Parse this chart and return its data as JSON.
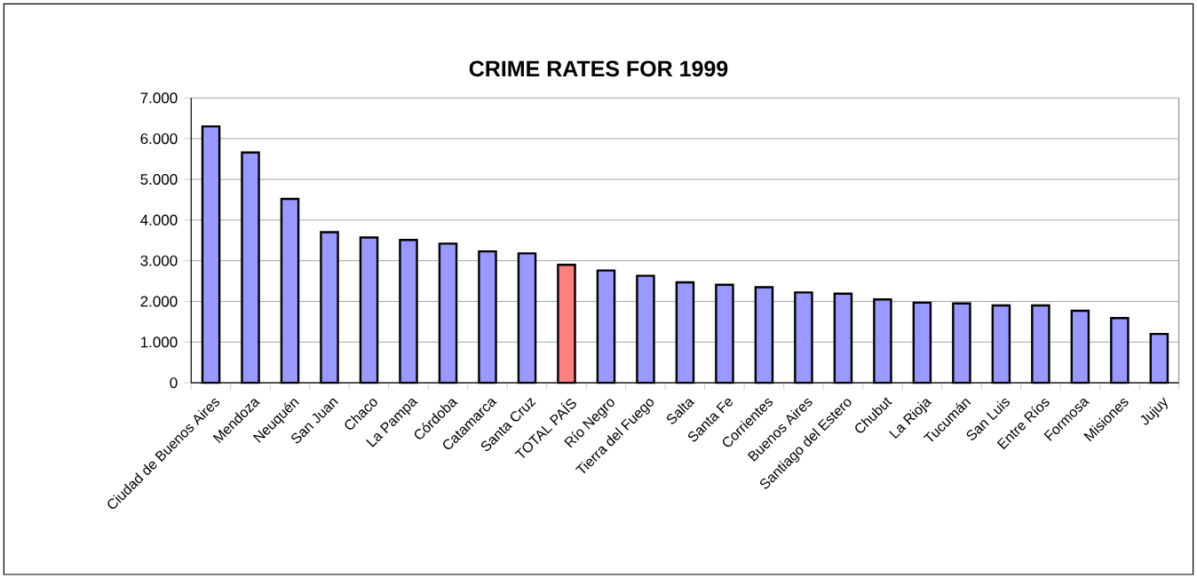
{
  "chart_data": {
    "type": "bar",
    "title": "CRIME RATES FOR 1999",
    "categories": [
      "Ciudad de Buenos Aires",
      "Mendoza",
      "Neuquén",
      "San Juan",
      "Chaco",
      "La Pampa",
      "Córdoba",
      "Catamarca",
      "Santa Cruz",
      "TOTAL PAÍS",
      "Río Negro",
      "Tierra del Fuego",
      "Salta",
      "Santa Fe",
      "Corrientes",
      "Buenos Aires",
      "Santiago del Estero",
      "Chubut",
      "La Rioja",
      "Tucumán",
      "San Luis",
      "Entre Ríos",
      "Formosa",
      "Misiones",
      "Jujuy"
    ],
    "values": [
      6300,
      5660,
      4520,
      3700,
      3570,
      3510,
      3420,
      3230,
      3180,
      2900,
      2760,
      2630,
      2470,
      2410,
      2350,
      2220,
      2190,
      2050,
      1970,
      1950,
      1900,
      1900,
      1770,
      1590,
      1200
    ],
    "colors": [
      "#9999ff",
      "#9999ff",
      "#9999ff",
      "#9999ff",
      "#9999ff",
      "#9999ff",
      "#9999ff",
      "#9999ff",
      "#9999ff",
      "#ff8080",
      "#9999ff",
      "#9999ff",
      "#9999ff",
      "#9999ff",
      "#9999ff",
      "#9999ff",
      "#9999ff",
      "#9999ff",
      "#9999ff",
      "#9999ff",
      "#9999ff",
      "#9999ff",
      "#9999ff",
      "#9999ff",
      "#9999ff"
    ],
    "ylim": [
      0,
      7000
    ],
    "yticks": [
      0,
      {
        "value": 1000,
        "label": "1.000"
      },
      {
        "value": 2000,
        "label": "2.000"
      },
      {
        "value": 3000,
        "label": "3.000"
      },
      {
        "value": 4000,
        "label": "4.000"
      },
      {
        "value": 5000,
        "label": "5.000"
      },
      {
        "value": 6000,
        "label": "6.000"
      },
      {
        "value": 7000,
        "label": "7.000"
      }
    ],
    "grid": "y"
  }
}
